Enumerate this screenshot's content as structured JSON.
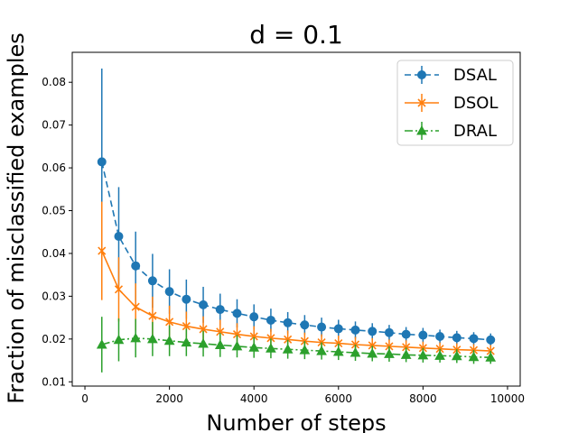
{
  "chart_data": {
    "type": "line",
    "title": "d = 0.1",
    "xlabel": "Number of steps",
    "ylabel": "Fraction of misclassified examples",
    "xlim": [
      -300,
      10300
    ],
    "ylim": [
      0.009,
      0.087
    ],
    "xticks": [
      0,
      2000,
      4000,
      6000,
      8000,
      10000
    ],
    "xtick_labels": [
      "0",
      "2000",
      "4000",
      "6000",
      "8000",
      "10000"
    ],
    "yticks": [
      0.01,
      0.02,
      0.03,
      0.04,
      0.05,
      0.06,
      0.07,
      0.08
    ],
    "ytick_labels": [
      "0.01",
      "0.02",
      "0.03",
      "0.04",
      "0.05",
      "0.06",
      "0.07",
      "0.08"
    ],
    "grid": false,
    "legend_position": "top-right",
    "x": [
      400,
      800,
      1200,
      1600,
      2000,
      2400,
      2800,
      3200,
      3600,
      4000,
      4400,
      4800,
      5200,
      5600,
      6000,
      6400,
      6800,
      7200,
      7600,
      8000,
      8400,
      8800,
      9200,
      9600
    ],
    "series": [
      {
        "name": "DSAL",
        "color": "#1f77b4",
        "marker": "circle",
        "linestyle": "dashed",
        "values": [
          0.0614,
          0.044,
          0.0371,
          0.0336,
          0.0311,
          0.0293,
          0.028,
          0.0269,
          0.026,
          0.0252,
          0.0244,
          0.0238,
          0.0233,
          0.0228,
          0.0224,
          0.0221,
          0.0218,
          0.0215,
          0.0211,
          0.0209,
          0.0206,
          0.0203,
          0.0201,
          0.0198
        ],
        "errors": [
          0.0218,
          0.0115,
          0.008,
          0.0063,
          0.0052,
          0.0046,
          0.0042,
          0.0037,
          0.0033,
          0.0029,
          0.0027,
          0.0025,
          0.0023,
          0.0022,
          0.0021,
          0.002,
          0.0019,
          0.0018,
          0.0017,
          0.0017,
          0.0016,
          0.0016,
          0.0015,
          0.0015
        ]
      },
      {
        "name": "DSOL",
        "color": "#ff7f0e",
        "marker": "x",
        "linestyle": "solid",
        "values": [
          0.0406,
          0.0316,
          0.0275,
          0.0254,
          0.024,
          0.023,
          0.0223,
          0.0217,
          0.0211,
          0.0206,
          0.0202,
          0.0199,
          0.0195,
          0.0192,
          0.019,
          0.0187,
          0.0185,
          0.0183,
          0.0181,
          0.0179,
          0.0177,
          0.0175,
          0.0174,
          0.0172
        ],
        "errors": [
          0.0115,
          0.0075,
          0.0055,
          0.0045,
          0.0038,
          0.0034,
          0.003,
          0.0028,
          0.0026,
          0.0024,
          0.0022,
          0.0021,
          0.002,
          0.0019,
          0.0018,
          0.0018,
          0.0017,
          0.0016,
          0.0016,
          0.0015,
          0.0015,
          0.0015,
          0.0014,
          0.0014
        ]
      },
      {
        "name": "DRAL",
        "color": "#2ca02c",
        "marker": "triangle",
        "linestyle": "dashdot",
        "values": [
          0.0187,
          0.0198,
          0.0202,
          0.02,
          0.0196,
          0.0192,
          0.0189,
          0.0186,
          0.0183,
          0.018,
          0.0178,
          0.0176,
          0.0174,
          0.0172,
          0.017,
          0.0168,
          0.0166,
          0.0165,
          0.0163,
          0.0162,
          0.0161,
          0.016,
          0.0158,
          0.0157
        ],
        "errors": [
          0.0065,
          0.005,
          0.0045,
          0.004,
          0.0036,
          0.0032,
          0.003,
          0.0028,
          0.0026,
          0.0024,
          0.0023,
          0.0022,
          0.0021,
          0.002,
          0.0019,
          0.0019,
          0.0018,
          0.0018,
          0.0017,
          0.0017,
          0.0016,
          0.0016,
          0.0016,
          0.0015
        ]
      }
    ]
  }
}
